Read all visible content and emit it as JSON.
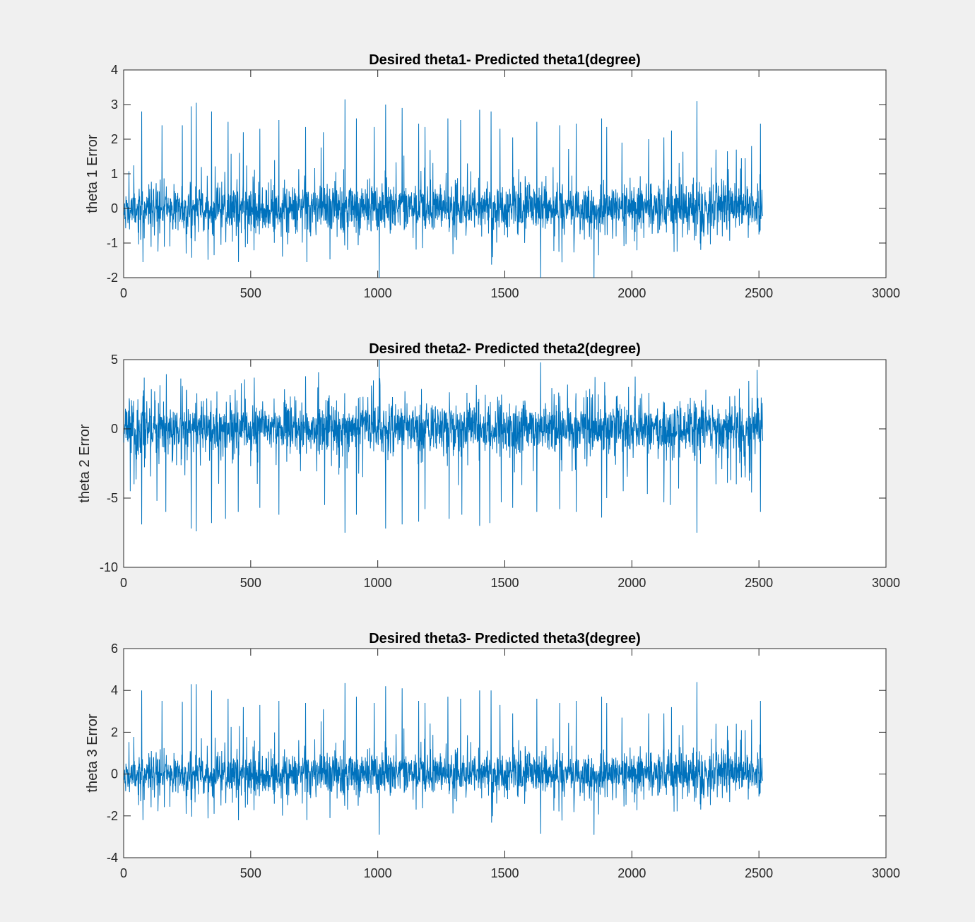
{
  "figure": {
    "background": "#f0f0f0",
    "axes_background": "#ffffff",
    "line_color": "#0072bd"
  },
  "chart_data": [
    {
      "type": "line",
      "title": "Desired theta1- Predicted theta1(degree)",
      "xlabel": "",
      "ylabel": "theta 1 Error",
      "xlim": [
        0,
        3000
      ],
      "ylim": [
        -2,
        4
      ],
      "xticks": [
        0,
        500,
        1000,
        1500,
        2000,
        2500,
        3000
      ],
      "yticks": [
        -2,
        -1,
        0,
        1,
        2,
        3,
        4
      ],
      "x_tick_labels": [
        "0",
        "500",
        "1000",
        "1500",
        "2000",
        "2500",
        "3000"
      ],
      "y_tick_labels": [
        "-2",
        "-1",
        "0",
        "1",
        "2",
        "3",
        "4"
      ],
      "grid": false,
      "series": [
        {
          "n_points": 2515,
          "baseline_sigma": 0.35,
          "seed": 11,
          "spikes": [
            [
              70,
              2.8
            ],
            [
              75,
              -1.55
            ],
            [
              150,
              2.4
            ],
            [
              230,
              2.4
            ],
            [
              245,
              -1.3
            ],
            [
              265,
              2.95
            ],
            [
              285,
              3.05
            ],
            [
              345,
              2.8
            ],
            [
              355,
              -1.35
            ],
            [
              410,
              2.5
            ],
            [
              470,
              2.2
            ],
            [
              535,
              2.3
            ],
            [
              610,
              2.55
            ],
            [
              715,
              2.35
            ],
            [
              720,
              -1.55
            ],
            [
              785,
              2.2
            ],
            [
              870,
              3.15
            ],
            [
              880,
              -1.2
            ],
            [
              915,
              2.6
            ],
            [
              985,
              2.35
            ],
            [
              1005,
              -2.0
            ],
            [
              1030,
              3.0
            ],
            [
              1095,
              2.9
            ],
            [
              1160,
              2.45
            ],
            [
              1185,
              2.35
            ],
            [
              1275,
              2.6
            ],
            [
              1325,
              2.55
            ],
            [
              1400,
              2.85
            ],
            [
              1445,
              2.8
            ],
            [
              1480,
              2.3
            ],
            [
              1530,
              2.05
            ],
            [
              1625,
              2.5
            ],
            [
              1640,
              -2.0
            ],
            [
              1715,
              2.4
            ],
            [
              1780,
              2.45
            ],
            [
              1880,
              2.6
            ],
            [
              1900,
              2.35
            ],
            [
              1960,
              1.9
            ],
            [
              2065,
              2.0
            ],
            [
              2125,
              2.05
            ],
            [
              2155,
              2.25
            ],
            [
              2255,
              3.1
            ],
            [
              2270,
              -1.2
            ],
            [
              2330,
              1.7
            ],
            [
              2375,
              1.65
            ],
            [
              2410,
              1.7
            ],
            [
              2430,
              1.45
            ],
            [
              2445,
              1.45
            ],
            [
              2470,
              1.8
            ],
            [
              2505,
              2.45
            ]
          ]
        }
      ]
    },
    {
      "type": "line",
      "title": "Desired theta2- Predicted theta2(degree)",
      "xlabel": "",
      "ylabel": "theta 2 Error",
      "xlim": [
        0,
        3000
      ],
      "ylim": [
        -10,
        5
      ],
      "xticks": [
        0,
        500,
        1000,
        1500,
        2000,
        2500,
        3000
      ],
      "yticks": [
        -10,
        -5,
        0,
        5
      ],
      "x_tick_labels": [
        "0",
        "500",
        "1000",
        "1500",
        "2000",
        "2500",
        "3000"
      ],
      "y_tick_labels": [
        "-10",
        "-5",
        "0",
        "5"
      ],
      "grid": false,
      "series": [
        {
          "n_points": 2515,
          "baseline_sigma": 0.9,
          "seed": 23,
          "spikes": [
            [
              25,
              -4.5
            ],
            [
              40,
              -4.0
            ],
            [
              70,
              -6.9
            ],
            [
              80,
              3.7
            ],
            [
              130,
              -5.2
            ],
            [
              165,
              -6.0
            ],
            [
              230,
              3.1
            ],
            [
              265,
              -7.2
            ],
            [
              285,
              -7.4
            ],
            [
              345,
              -6.8
            ],
            [
              400,
              -6.5
            ],
            [
              450,
              -6.0
            ],
            [
              535,
              -5.7
            ],
            [
              610,
              -6.2
            ],
            [
              715,
              3.8
            ],
            [
              790,
              -5.5
            ],
            [
              870,
              -7.5
            ],
            [
              915,
              -6.2
            ],
            [
              1005,
              5.0
            ],
            [
              1030,
              -7.2
            ],
            [
              1095,
              -6.9
            ],
            [
              1160,
              -6.7
            ],
            [
              1185,
              -5.8
            ],
            [
              1280,
              -6.5
            ],
            [
              1330,
              -6.2
            ],
            [
              1400,
              -7.0
            ],
            [
              1440,
              -6.8
            ],
            [
              1485,
              -5.3
            ],
            [
              1530,
              -5.7
            ],
            [
              1625,
              -6.0
            ],
            [
              1640,
              4.8
            ],
            [
              1715,
              -5.8
            ],
            [
              1780,
              -6.0
            ],
            [
              1880,
              -6.4
            ],
            [
              1900,
              -5.0
            ],
            [
              1965,
              -4.5
            ],
            [
              2060,
              -4.7
            ],
            [
              2125,
              -5.3
            ],
            [
              2150,
              -5.5
            ],
            [
              2255,
              -7.5
            ],
            [
              2330,
              -4.0
            ],
            [
              2375,
              -3.9
            ],
            [
              2410,
              -4.0
            ],
            [
              2430,
              -3.5
            ],
            [
              2445,
              -3.5
            ],
            [
              2470,
              -4.6
            ],
            [
              2505,
              -6.0
            ]
          ]
        }
      ]
    },
    {
      "type": "line",
      "title": "Desired theta3- Predicted theta3(degree)",
      "xlabel": "",
      "ylabel": "theta 3 Error",
      "xlim": [
        0,
        3000
      ],
      "ylim": [
        -4,
        6
      ],
      "xticks": [
        0,
        500,
        1000,
        1500,
        2000,
        2500,
        3000
      ],
      "yticks": [
        -4,
        -2,
        0,
        2,
        4,
        6
      ],
      "x_tick_labels": [
        "0",
        "500",
        "1000",
        "1500",
        "2000",
        "2500",
        "3000"
      ],
      "y_tick_labels": [
        "-4",
        "-2",
        "0",
        "2",
        "4",
        "6"
      ],
      "grid": false,
      "series": [
        {
          "n_points": 2515,
          "baseline_sigma": 0.5,
          "seed": 11,
          "spikes": [
            [
              70,
              4.0
            ],
            [
              75,
              -2.2
            ],
            [
              150,
              3.5
            ],
            [
              230,
              3.45
            ],
            [
              245,
              -1.9
            ],
            [
              265,
              4.3
            ],
            [
              285,
              4.3
            ],
            [
              345,
              4.0
            ],
            [
              355,
              -1.9
            ],
            [
              410,
              3.6
            ],
            [
              470,
              3.2
            ],
            [
              535,
              3.3
            ],
            [
              610,
              3.5
            ],
            [
              715,
              3.4
            ],
            [
              720,
              -2.2
            ],
            [
              785,
              3.1
            ],
            [
              870,
              4.35
            ],
            [
              880,
              -1.7
            ],
            [
              915,
              3.7
            ],
            [
              985,
              3.4
            ],
            [
              1005,
              -2.9
            ],
            [
              1030,
              4.2
            ],
            [
              1095,
              4.1
            ],
            [
              1160,
              3.5
            ],
            [
              1185,
              3.4
            ],
            [
              1275,
              3.7
            ],
            [
              1325,
              3.6
            ],
            [
              1400,
              4.0
            ],
            [
              1445,
              4.0
            ],
            [
              1480,
              3.3
            ],
            [
              1530,
              2.9
            ],
            [
              1625,
              3.6
            ],
            [
              1640,
              -2.85
            ],
            [
              1715,
              3.4
            ],
            [
              1780,
              3.5
            ],
            [
              1880,
              3.7
            ],
            [
              1900,
              3.4
            ],
            [
              1960,
              2.7
            ],
            [
              2065,
              2.9
            ],
            [
              2125,
              2.9
            ],
            [
              2155,
              3.2
            ],
            [
              2255,
              4.4
            ],
            [
              2270,
              -1.7
            ],
            [
              2330,
              2.4
            ],
            [
              2375,
              2.3
            ],
            [
              2410,
              2.4
            ],
            [
              2430,
              2.1
            ],
            [
              2445,
              2.1
            ],
            [
              2470,
              2.6
            ],
            [
              2505,
              3.5
            ]
          ]
        }
      ]
    }
  ]
}
